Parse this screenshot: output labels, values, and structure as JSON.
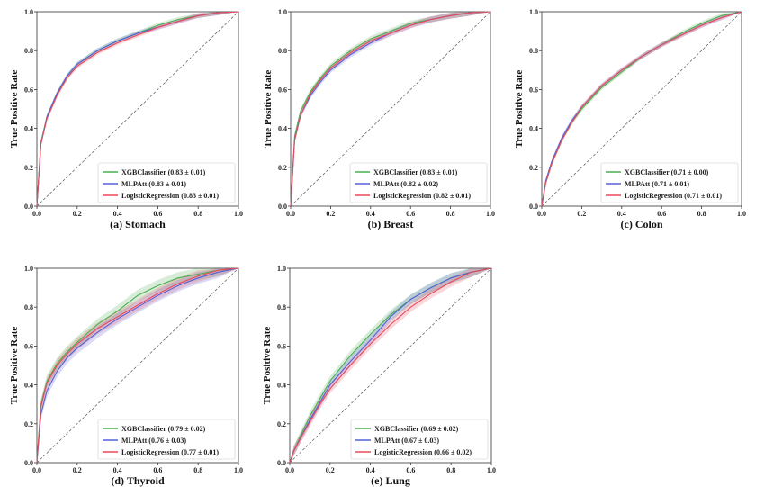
{
  "chart_data": [
    {
      "type": "line",
      "caption": "(a) Stomach",
      "ylabel": "True Positive Rate",
      "xlim": [
        0,
        1
      ],
      "ylim": [
        0,
        1
      ],
      "xticks": [
        "0.0",
        "0.2",
        "0.4",
        "0.6",
        "0.8",
        "1.0"
      ],
      "yticks": [
        "0.0",
        "0.2",
        "0.4",
        "0.6",
        "0.8",
        "1.0"
      ],
      "grid": false,
      "legend_position": "lower-right",
      "series": [
        {
          "name": "XGBClassifier (0.83 ± 0.01)",
          "color": "#4caf50",
          "x": [
            0,
            0.02,
            0.05,
            0.1,
            0.15,
            0.2,
            0.3,
            0.4,
            0.5,
            0.6,
            0.7,
            0.8,
            0.9,
            1.0
          ],
          "y": [
            0,
            0.33,
            0.46,
            0.58,
            0.67,
            0.73,
            0.8,
            0.85,
            0.89,
            0.93,
            0.96,
            0.98,
            0.995,
            1.0
          ]
        },
        {
          "name": "MLPAtt (0.83 ± 0.01)",
          "color": "#5560d8",
          "x": [
            0,
            0.02,
            0.05,
            0.1,
            0.15,
            0.2,
            0.3,
            0.4,
            0.5,
            0.6,
            0.7,
            0.8,
            0.9,
            1.0
          ],
          "y": [
            0,
            0.32,
            0.46,
            0.58,
            0.67,
            0.73,
            0.8,
            0.85,
            0.89,
            0.92,
            0.95,
            0.98,
            0.995,
            1.0
          ]
        },
        {
          "name": "LogisticRegression (0.83 ± 0.01)",
          "color": "#e84a5a",
          "x": [
            0,
            0.02,
            0.05,
            0.1,
            0.15,
            0.2,
            0.3,
            0.4,
            0.5,
            0.6,
            0.7,
            0.8,
            0.9,
            1.0
          ],
          "y": [
            0,
            0.32,
            0.45,
            0.57,
            0.66,
            0.72,
            0.79,
            0.84,
            0.88,
            0.92,
            0.95,
            0.98,
            0.995,
            1.0
          ]
        }
      ]
    },
    {
      "type": "line",
      "caption": "(b) Breast",
      "ylabel": "True Positive Rate",
      "xlim": [
        0,
        1
      ],
      "ylim": [
        0,
        1
      ],
      "xticks": [
        "0.0",
        "0.2",
        "0.4",
        "0.6",
        "0.8",
        "1.0"
      ],
      "yticks": [
        "0.0",
        "0.2",
        "0.4",
        "0.6",
        "0.8",
        "1.0"
      ],
      "grid": false,
      "legend_position": "lower-right",
      "series": [
        {
          "name": "XGBClassifier (0.83 ± 0.01)",
          "color": "#4caf50",
          "x": [
            0,
            0.02,
            0.05,
            0.1,
            0.15,
            0.2,
            0.3,
            0.4,
            0.5,
            0.6,
            0.7,
            0.8,
            0.9,
            1.0
          ],
          "y": [
            0,
            0.36,
            0.49,
            0.59,
            0.66,
            0.72,
            0.8,
            0.86,
            0.9,
            0.94,
            0.96,
            0.98,
            0.995,
            1.0
          ]
        },
        {
          "name": "MLPAtt (0.82 ± 0.02)",
          "color": "#5560d8",
          "x": [
            0,
            0.02,
            0.05,
            0.1,
            0.15,
            0.2,
            0.3,
            0.4,
            0.5,
            0.6,
            0.7,
            0.8,
            0.9,
            1.0
          ],
          "y": [
            0,
            0.34,
            0.47,
            0.57,
            0.64,
            0.7,
            0.78,
            0.84,
            0.89,
            0.93,
            0.96,
            0.98,
            0.995,
            1.0
          ]
        },
        {
          "name": "LogisticRegression (0.82 ± 0.01)",
          "color": "#e84a5a",
          "x": [
            0,
            0.02,
            0.05,
            0.1,
            0.15,
            0.2,
            0.3,
            0.4,
            0.5,
            0.6,
            0.7,
            0.8,
            0.9,
            1.0
          ],
          "y": [
            0,
            0.34,
            0.47,
            0.58,
            0.65,
            0.71,
            0.79,
            0.85,
            0.89,
            0.93,
            0.96,
            0.98,
            0.995,
            1.0
          ]
        }
      ]
    },
    {
      "type": "line",
      "caption": "(c) Colon",
      "ylabel": "True Positive Rate",
      "xlim": [
        0,
        1
      ],
      "ylim": [
        0,
        1
      ],
      "xticks": [
        "0.0",
        "0.2",
        "0.4",
        "0.6",
        "0.8",
        "1.0"
      ],
      "yticks": [
        "0.0",
        "0.2",
        "0.4",
        "0.6",
        "0.8",
        "1.0"
      ],
      "grid": false,
      "legend_position": "lower-right",
      "series": [
        {
          "name": "XGBClassifier (0.71 ± 0.00)",
          "color": "#4caf50",
          "x": [
            0,
            0.02,
            0.05,
            0.1,
            0.15,
            0.2,
            0.3,
            0.4,
            0.5,
            0.6,
            0.7,
            0.8,
            0.9,
            1.0
          ],
          "y": [
            0,
            0.12,
            0.22,
            0.34,
            0.43,
            0.5,
            0.61,
            0.69,
            0.77,
            0.83,
            0.89,
            0.94,
            0.98,
            1.0
          ]
        },
        {
          "name": "MLPAtt (0.71 ± 0.01)",
          "color": "#5560d8",
          "x": [
            0,
            0.02,
            0.05,
            0.1,
            0.15,
            0.2,
            0.3,
            0.4,
            0.5,
            0.6,
            0.7,
            0.8,
            0.9,
            1.0
          ],
          "y": [
            0,
            0.13,
            0.23,
            0.35,
            0.44,
            0.51,
            0.62,
            0.7,
            0.77,
            0.83,
            0.88,
            0.93,
            0.97,
            1.0
          ]
        },
        {
          "name": "LogisticRegression (0.71 ± 0.01)",
          "color": "#e84a5a",
          "x": [
            0,
            0.02,
            0.05,
            0.1,
            0.15,
            0.2,
            0.3,
            0.4,
            0.5,
            0.6,
            0.7,
            0.8,
            0.9,
            1.0
          ],
          "y": [
            0,
            0.12,
            0.22,
            0.34,
            0.43,
            0.51,
            0.62,
            0.7,
            0.77,
            0.83,
            0.88,
            0.93,
            0.97,
            1.0
          ]
        }
      ]
    },
    {
      "type": "line",
      "caption": "(d) Thyroid",
      "ylabel": "True Positive Rate",
      "xlim": [
        0,
        1
      ],
      "ylim": [
        0,
        1
      ],
      "xticks": [
        "0.0",
        "0.2",
        "0.4",
        "0.6",
        "0.8",
        "1.0"
      ],
      "yticks": [
        "0.0",
        "0.2",
        "0.4",
        "0.6",
        "0.8",
        "1.0"
      ],
      "grid": false,
      "legend_position": "lower-right",
      "series": [
        {
          "name": "XGBClassifier (0.79 ± 0.02)",
          "color": "#4caf50",
          "x": [
            0,
            0.02,
            0.05,
            0.1,
            0.15,
            0.2,
            0.3,
            0.4,
            0.5,
            0.6,
            0.7,
            0.8,
            0.9,
            1.0
          ],
          "y": [
            0,
            0.3,
            0.42,
            0.51,
            0.57,
            0.62,
            0.71,
            0.78,
            0.86,
            0.91,
            0.95,
            0.97,
            0.99,
            1.0
          ]
        },
        {
          "name": "MLPAtt (0.76 ± 0.03)",
          "color": "#5560d8",
          "x": [
            0,
            0.02,
            0.05,
            0.1,
            0.15,
            0.2,
            0.3,
            0.4,
            0.5,
            0.6,
            0.7,
            0.8,
            0.9,
            1.0
          ],
          "y": [
            0,
            0.25,
            0.37,
            0.47,
            0.54,
            0.59,
            0.67,
            0.74,
            0.8,
            0.86,
            0.91,
            0.95,
            0.98,
            1.0
          ]
        },
        {
          "name": "LogisticRegression (0.77 ± 0.01)",
          "color": "#e84a5a",
          "x": [
            0,
            0.02,
            0.05,
            0.1,
            0.15,
            0.2,
            0.3,
            0.4,
            0.5,
            0.6,
            0.7,
            0.8,
            0.9,
            1.0
          ],
          "y": [
            0,
            0.29,
            0.41,
            0.5,
            0.56,
            0.61,
            0.69,
            0.75,
            0.81,
            0.87,
            0.92,
            0.96,
            0.99,
            1.0
          ]
        }
      ]
    },
    {
      "type": "line",
      "caption": "(e) Lung",
      "ylabel": "True Positive Rate",
      "xlim": [
        0,
        1
      ],
      "ylim": [
        0,
        1
      ],
      "xticks": [
        "0.0",
        "0.2",
        "0.4",
        "0.6",
        "0.8",
        "1.0"
      ],
      "yticks": [
        "0.0",
        "0.2",
        "0.4",
        "0.6",
        "0.8",
        "1.0"
      ],
      "grid": false,
      "legend_position": "lower-right",
      "series": [
        {
          "name": "XGBClassifier (0.69 ± 0.02)",
          "color": "#4caf50",
          "x": [
            0,
            0.02,
            0.05,
            0.1,
            0.15,
            0.2,
            0.3,
            0.4,
            0.5,
            0.6,
            0.7,
            0.8,
            0.9,
            1.0
          ],
          "y": [
            0,
            0.06,
            0.13,
            0.24,
            0.33,
            0.42,
            0.55,
            0.66,
            0.76,
            0.84,
            0.9,
            0.95,
            0.98,
            1.0
          ]
        },
        {
          "name": "MLPAtt (0.67 ± 0.03)",
          "color": "#5560d8",
          "x": [
            0,
            0.02,
            0.05,
            0.1,
            0.15,
            0.2,
            0.3,
            0.4,
            0.5,
            0.6,
            0.7,
            0.8,
            0.9,
            1.0
          ],
          "y": [
            0,
            0.06,
            0.12,
            0.22,
            0.31,
            0.4,
            0.52,
            0.63,
            0.75,
            0.84,
            0.9,
            0.95,
            0.98,
            1.0
          ]
        },
        {
          "name": "LogisticRegression (0.66 ± 0.02)",
          "color": "#e84a5a",
          "x": [
            0,
            0.02,
            0.05,
            0.1,
            0.15,
            0.2,
            0.3,
            0.4,
            0.5,
            0.6,
            0.7,
            0.8,
            0.9,
            1.0
          ],
          "y": [
            0,
            0.06,
            0.12,
            0.21,
            0.3,
            0.38,
            0.5,
            0.61,
            0.71,
            0.8,
            0.87,
            0.93,
            0.98,
            1.0
          ]
        }
      ]
    }
  ]
}
